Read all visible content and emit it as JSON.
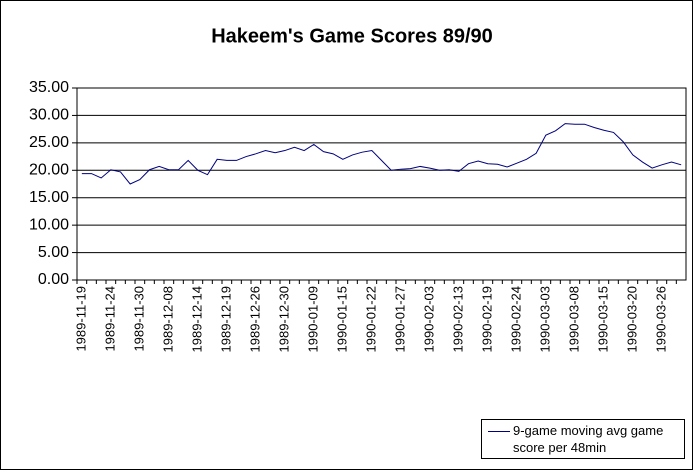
{
  "chart_data": {
    "type": "line",
    "title": "Hakeem's Game Scores 89/90",
    "categories": [
      "1989-11-19",
      null,
      null,
      "1989-11-24",
      null,
      null,
      "1989-11-30",
      null,
      null,
      "1989-12-08",
      null,
      null,
      "1989-12-14",
      null,
      null,
      "1989-12-19",
      null,
      null,
      "1989-12-26",
      null,
      null,
      "1989-12-30",
      null,
      null,
      "1990-01-09",
      null,
      null,
      "1990-01-15",
      null,
      null,
      "1990-01-22",
      null,
      null,
      "1990-01-27",
      null,
      null,
      "1990-02-03",
      null,
      null,
      "1990-02-13",
      null,
      null,
      "1990-02-19",
      null,
      null,
      "1990-02-24",
      null,
      null,
      "1990-03-03",
      null,
      null,
      "1990-03-08",
      null,
      null,
      "1990-03-15",
      null,
      null,
      "1990-03-20",
      null,
      null,
      "1990-03-26",
      null,
      null
    ],
    "series": [
      {
        "name": "9-game moving avg game score per 48min",
        "color": "#000080",
        "values": [
          19.4,
          19.4,
          18.6,
          20.1,
          19.7,
          17.5,
          18.3,
          20.1,
          20.7,
          20.1,
          20.1,
          21.8,
          20.0,
          19.2,
          22.0,
          21.8,
          21.8,
          22.5,
          23.0,
          23.6,
          23.2,
          23.6,
          24.2,
          23.6,
          24.7,
          23.4,
          23.0,
          22.0,
          22.8,
          23.3,
          23.6,
          21.8,
          20.0,
          20.2,
          20.3,
          20.7,
          20.4,
          20.0,
          20.1,
          19.8,
          21.2,
          21.7,
          21.2,
          21.1,
          20.6,
          21.3,
          22.0,
          23.1,
          26.4,
          27.2,
          28.5,
          28.4,
          28.4,
          27.8,
          27.3,
          26.9,
          25.2,
          22.8,
          21.5,
          20.4,
          21.0,
          21.5,
          21.0
        ]
      }
    ],
    "ylim": [
      0,
      35
    ],
    "yticks": [
      {
        "value": 0,
        "label": "0.00"
      },
      {
        "value": 5,
        "label": "5.00"
      },
      {
        "value": 10,
        "label": "10.00"
      },
      {
        "value": 15,
        "label": "15.00"
      },
      {
        "value": 20,
        "label": "20.00"
      },
      {
        "value": 25,
        "label": "25.00"
      },
      {
        "value": 30,
        "label": "30.00"
      },
      {
        "value": 35,
        "label": "35.00"
      }
    ],
    "grid": true,
    "legend": "bottom-right"
  }
}
